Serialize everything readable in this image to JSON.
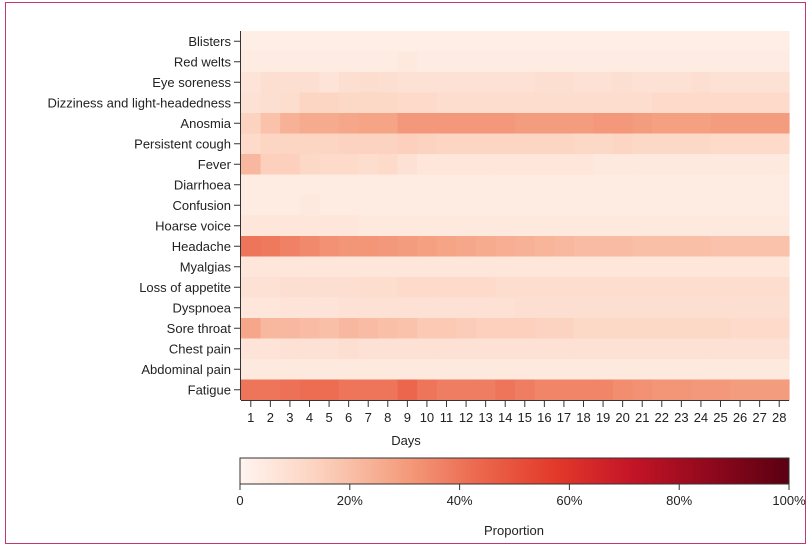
{
  "chart_data": {
    "type": "heatmap",
    "title": "",
    "xlabel": "Days",
    "ylabel": "",
    "x": [
      "1",
      "2",
      "3",
      "4",
      "5",
      "6",
      "7",
      "8",
      "9",
      "10",
      "11",
      "12",
      "13",
      "14",
      "15",
      "16",
      "17",
      "18",
      "19",
      "20",
      "21",
      "22",
      "23",
      "24",
      "25",
      "26",
      "27",
      "28"
    ],
    "y": [
      "Blisters",
      "Red welts",
      "Eye soreness",
      "Dizziness and light-headedness",
      "Anosmia",
      "Persistent cough",
      "Fever",
      "Diarrhoea",
      "Confusion",
      "Hoarse voice",
      "Headache",
      "Myalgias",
      "Loss of appetite",
      "Dyspnoea",
      "Sore throat",
      "Chest pain",
      "Abdominal pain",
      "Fatigue"
    ],
    "values": [
      [
        3,
        3,
        3,
        3,
        3,
        3,
        3,
        3,
        3,
        3,
        3,
        3,
        3,
        3,
        3,
        3,
        3,
        3,
        3,
        3,
        3,
        3,
        3,
        3,
        3,
        3,
        3,
        3
      ],
      [
        4,
        4,
        4,
        4,
        4,
        4,
        4,
        4,
        5,
        4,
        4,
        4,
        4,
        4,
        4,
        4,
        4,
        4,
        4,
        4,
        4,
        4,
        4,
        4,
        4,
        4,
        4,
        4
      ],
      [
        7,
        9,
        9,
        9,
        7,
        9,
        10,
        9,
        8,
        8,
        8,
        8,
        8,
        8,
        8,
        9,
        9,
        8,
        8,
        9,
        8,
        8,
        8,
        9,
        8,
        8,
        8,
        8
      ],
      [
        8,
        9,
        10,
        13,
        13,
        12,
        12,
        12,
        11,
        11,
        10,
        10,
        10,
        10,
        10,
        10,
        10,
        10,
        10,
        10,
        10,
        11,
        11,
        11,
        11,
        11,
        11,
        11
      ],
      [
        14,
        19,
        24,
        26,
        26,
        27,
        28,
        28,
        31,
        31,
        31,
        31,
        31,
        31,
        30,
        30,
        30,
        30,
        31,
        31,
        30,
        29,
        29,
        29,
        30,
        30,
        30,
        30
      ],
      [
        11,
        13,
        13,
        13,
        13,
        14,
        14,
        14,
        15,
        14,
        13,
        13,
        13,
        13,
        13,
        13,
        13,
        12,
        12,
        13,
        12,
        12,
        12,
        12,
        11,
        11,
        11,
        11
      ],
      [
        22,
        15,
        15,
        12,
        11,
        11,
        10,
        11,
        8,
        6,
        6,
        6,
        6,
        6,
        6,
        6,
        6,
        6,
        5,
        5,
        5,
        5,
        5,
        5,
        5,
        5,
        5,
        5
      ],
      [
        4,
        4,
        4,
        4,
        4,
        4,
        4,
        4,
        4,
        4,
        4,
        4,
        4,
        4,
        4,
        4,
        4,
        4,
        4,
        4,
        4,
        4,
        4,
        4,
        4,
        4,
        4,
        4
      ],
      [
        4,
        4,
        4,
        5,
        4,
        4,
        4,
        4,
        4,
        4,
        4,
        4,
        4,
        4,
        4,
        4,
        4,
        4,
        4,
        4,
        4,
        4,
        4,
        4,
        4,
        4,
        4,
        4
      ],
      [
        6,
        6,
        6,
        6,
        6,
        6,
        5,
        5,
        5,
        5,
        5,
        5,
        5,
        5,
        5,
        5,
        5,
        5,
        5,
        5,
        5,
        5,
        5,
        5,
        5,
        5,
        5,
        5
      ],
      [
        40,
        39,
        37,
        35,
        33,
        32,
        32,
        31,
        30,
        29,
        28,
        27,
        26,
        25,
        24,
        23,
        22,
        21,
        21,
        21,
        20,
        20,
        20,
        20,
        19,
        19,
        19,
        19
      ],
      [
        6,
        6,
        6,
        6,
        6,
        6,
        6,
        6,
        6,
        6,
        6,
        6,
        6,
        6,
        6,
        6,
        6,
        6,
        6,
        6,
        6,
        6,
        6,
        6,
        6,
        6,
        6,
        6
      ],
      [
        8,
        8,
        9,
        9,
        9,
        9,
        10,
        10,
        11,
        11,
        11,
        11,
        11,
        10,
        10,
        10,
        10,
        10,
        10,
        10,
        10,
        10,
        10,
        10,
        10,
        10,
        10,
        10
      ],
      [
        6,
        6,
        7,
        7,
        7,
        8,
        8,
        8,
        8,
        8,
        8,
        8,
        8,
        8,
        9,
        9,
        9,
        9,
        9,
        9,
        9,
        9,
        9,
        9,
        9,
        9,
        9,
        9
      ],
      [
        27,
        22,
        22,
        21,
        20,
        22,
        21,
        20,
        19,
        17,
        17,
        16,
        15,
        15,
        15,
        14,
        14,
        12,
        12,
        12,
        12,
        12,
        12,
        12,
        12,
        11,
        11,
        11
      ],
      [
        7,
        7,
        8,
        8,
        8,
        9,
        8,
        8,
        8,
        8,
        8,
        8,
        8,
        8,
        8,
        8,
        8,
        8,
        8,
        8,
        8,
        8,
        8,
        8,
        8,
        8,
        8,
        8
      ],
      [
        5,
        5,
        5,
        5,
        5,
        5,
        5,
        5,
        5,
        5,
        5,
        5,
        5,
        5,
        5,
        5,
        5,
        5,
        5,
        5,
        5,
        5,
        5,
        5,
        5,
        5,
        5,
        5
      ],
      [
        40,
        40,
        41,
        42,
        42,
        40,
        40,
        40,
        44,
        40,
        38,
        38,
        38,
        40,
        38,
        36,
        36,
        36,
        36,
        34,
        33,
        32,
        32,
        31,
        31,
        30,
        30,
        30
      ]
    ],
    "value_unit": "percent",
    "colorbar": {
      "range": [
        0,
        100
      ],
      "ticks": [
        0,
        20,
        40,
        60,
        80,
        100
      ],
      "tick_labels": [
        "0",
        "20%",
        "40%",
        "60%",
        "80%",
        "100%"
      ],
      "label": "Proportion",
      "colors": [
        "#fff5f0",
        "#fcd2bf",
        "#f5a283",
        "#ec6a4f",
        "#e33a2b",
        "#c41427",
        "#90081c",
        "#5a0012"
      ]
    },
    "grid": false,
    "legend": "colorbar-bottom"
  }
}
